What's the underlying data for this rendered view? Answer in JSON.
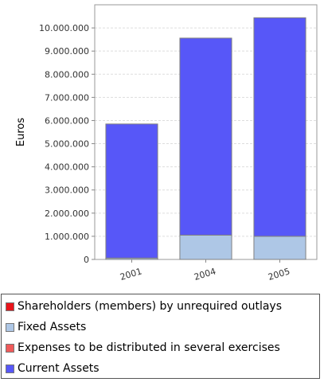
{
  "chart_data": {
    "type": "bar",
    "stacked": true,
    "categories": [
      "2001",
      "2004",
      "2005"
    ],
    "ylabel": "Euros",
    "xlabel": "",
    "ylim": [
      0,
      11000000
    ],
    "yticks": [
      0,
      1000000,
      2000000,
      3000000,
      4000000,
      5000000,
      6000000,
      7000000,
      8000000,
      9000000,
      10000000
    ],
    "ytick_labels": [
      "0",
      "1.000.000",
      "2.000.000",
      "3.000.000",
      "4.000.000",
      "5.000.000",
      "6.000.000",
      "7.000.000",
      "8.000.000",
      "9.000.000",
      "10.000.000"
    ],
    "grid": true,
    "legend_position": "bottom",
    "series": [
      {
        "name": "Shareholders (members) by unrequired outlays",
        "color": "#e8141b",
        "values": [
          0,
          0,
          0
        ]
      },
      {
        "name": "Fixed Assets",
        "color": "#aec7e6",
        "values": [
          60000,
          1050000,
          1000000
        ]
      },
      {
        "name": "Expenses to be distributed in several exercises",
        "color": "#ef5a5a",
        "values": [
          0,
          0,
          0
        ]
      },
      {
        "name": "Current Assets",
        "color": "#5757f8",
        "values": [
          5790000,
          8510000,
          9440000
        ]
      }
    ]
  }
}
